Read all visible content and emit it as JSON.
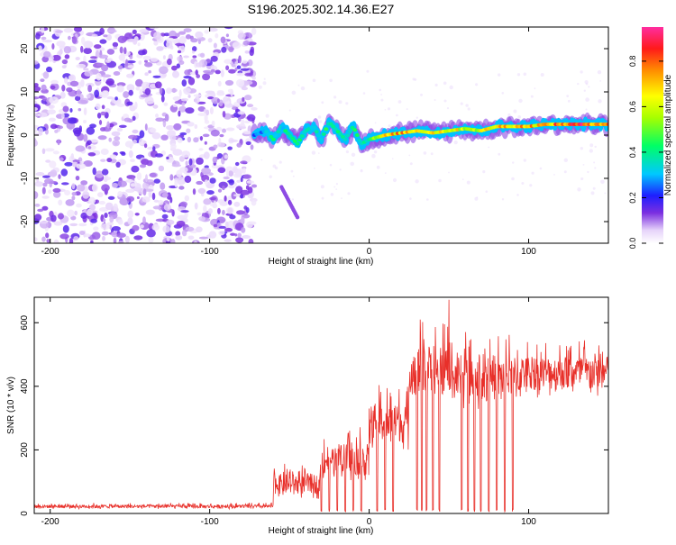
{
  "title": "S196.2025.302.14.36.E27",
  "chart_data": [
    {
      "type": "heatmap",
      "title": "S196.2025.302.14.36.E27",
      "xlabel": "Height of straight line (km)",
      "ylabel": "Frequency (Hz)",
      "xlim": [
        -210,
        150
      ],
      "ylim": [
        -25,
        25
      ],
      "x_ticks": [
        -200,
        -100,
        0,
        100
      ],
      "y_ticks": [
        -20,
        -10,
        0,
        10,
        20
      ],
      "colorbar": {
        "label": "Normalized spectral amplitude",
        "range": [
          0,
          0.95
        ],
        "ticks": [
          0.0,
          0.2,
          0.4,
          0.6,
          0.8
        ]
      },
      "noise_region_x": [
        -210,
        -72
      ],
      "ridge": {
        "x": [
          -72,
          -65,
          -60,
          -55,
          -50,
          -45,
          -40,
          -35,
          -30,
          -25,
          -20,
          -15,
          -10,
          -5,
          0,
          10,
          20,
          30,
          40,
          50,
          60,
          70,
          80,
          90,
          100,
          110,
          120,
          130,
          140,
          150
        ],
        "frequency": [
          0,
          1,
          -1,
          2,
          0,
          -2,
          1,
          2,
          -1,
          3,
          1,
          -1,
          2,
          -2,
          -1,
          0,
          0.5,
          1,
          0.5,
          1,
          1.5,
          1,
          2,
          2,
          2,
          2.5,
          2.5,
          2.5,
          2.5,
          2.5
        ],
        "peak_amplitude": [
          0.3,
          0.35,
          0.45,
          0.4,
          0.5,
          0.45,
          0.4,
          0.4,
          0.45,
          0.5,
          0.5,
          0.45,
          0.5,
          0.45,
          0.5,
          0.75,
          0.85,
          0.8,
          0.8,
          0.75,
          0.7,
          0.7,
          0.8,
          0.85,
          0.85,
          0.8,
          0.9,
          0.95,
          0.95,
          0.9
        ]
      },
      "secondary_feature": {
        "x": [
          -55,
          -50,
          -45
        ],
        "frequency": [
          -12,
          -16,
          -19
        ]
      }
    },
    {
      "type": "line",
      "xlabel": "Height of straight line (km)",
      "ylabel": "SNR (10 * v/v)",
      "xlim": [
        -210,
        150
      ],
      "ylim": [
        0,
        680
      ],
      "x_ticks": [
        -200,
        -100,
        0,
        100
      ],
      "y_ticks": [
        0,
        200,
        400,
        600
      ],
      "series_color": "#e8302a",
      "segments": [
        {
          "x_range": [
            -210,
            -60
          ],
          "baseline": 20,
          "noise": 12
        },
        {
          "x_range": [
            -60,
            -30
          ],
          "baseline": 80,
          "noise": 70
        },
        {
          "x_range": [
            -30,
            0
          ],
          "baseline": 150,
          "noise": 110
        },
        {
          "x_range": [
            0,
            25
          ],
          "baseline": 260,
          "noise": 130
        },
        {
          "x_range": [
            25,
            50
          ],
          "baseline": 420,
          "noise": 170
        },
        {
          "x_range": [
            50,
            95
          ],
          "baseline": 400,
          "noise": 160
        },
        {
          "x_range": [
            95,
            150
          ],
          "baseline": 420,
          "noise": 120
        }
      ],
      "dropouts_x": [
        -30,
        -25,
        -20,
        -15,
        -10,
        -5,
        5,
        10,
        15,
        30,
        33,
        36,
        40,
        44,
        58,
        62,
        66,
        70,
        75,
        80,
        85,
        90
      ],
      "peak": {
        "x": 50,
        "y": 672
      }
    }
  ]
}
